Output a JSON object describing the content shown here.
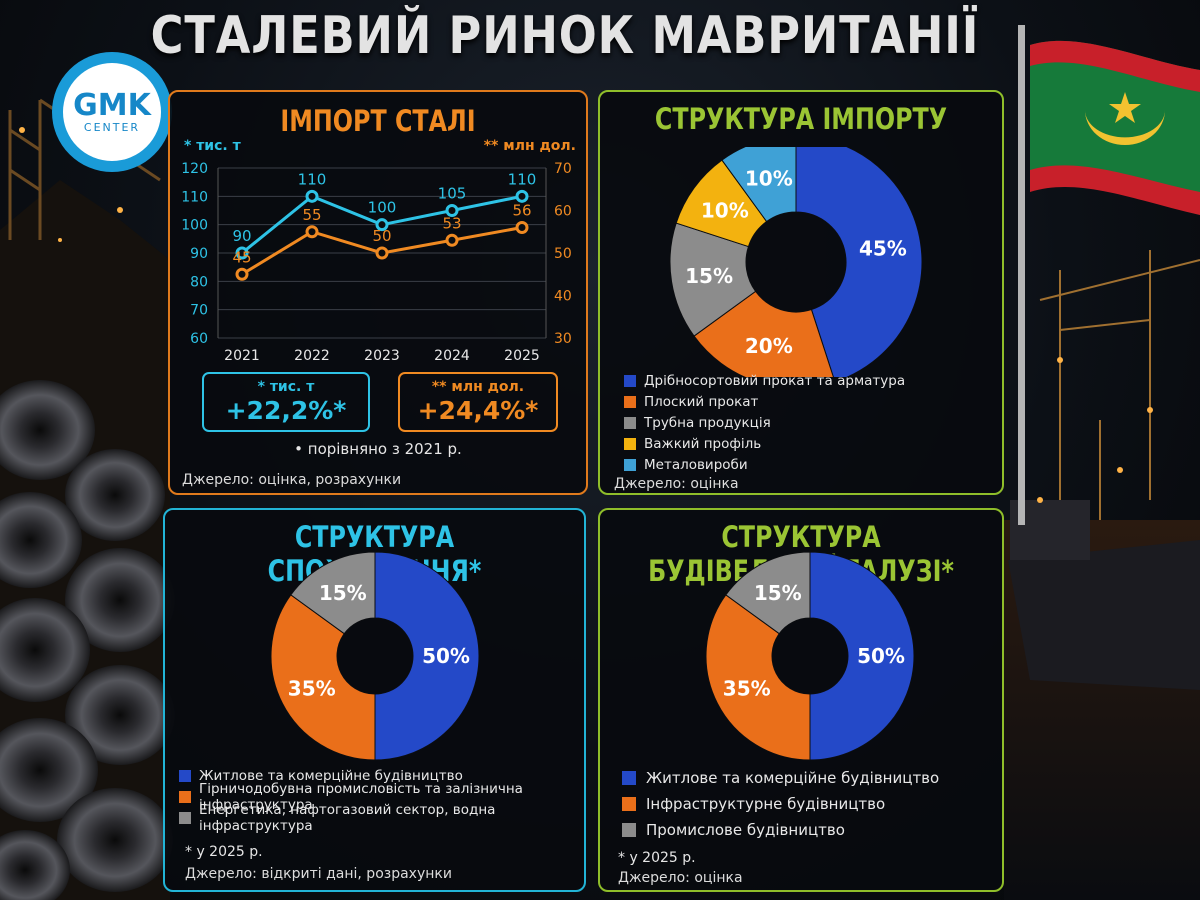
{
  "title": "СТАЛЕВИЙ РИНОК МАВРИТАНІЇ",
  "logo": {
    "top": "GMK",
    "bottom": "CENTER"
  },
  "colors": {
    "blue": "#2449c8",
    "orange": "#ea6f1a",
    "gray": "#8c8c8c",
    "yellow": "#f3b20f",
    "lightblue": "#3fa1d6",
    "cyan": "#2ec3e6",
    "lineOrange": "#f08a22"
  },
  "import": {
    "title": "ІМПОРТ СТАЛІ",
    "left_unit": "* тис. т",
    "right_unit": "** млн дол.",
    "growth_tons": {
      "unit": "* тис. т",
      "value": "+22,2%*"
    },
    "growth_usd": {
      "unit": "** млн дол.",
      "value": "+24,4%*"
    },
    "compare_note": "• порівняно з 2021 р.",
    "source": "Джерело: оцінка, розрахунки"
  },
  "structure_import": {
    "title": "СТРУКТУРА ІМПОРТУ",
    "source": "Джерело: оцінка"
  },
  "structure_consumption": {
    "title": "СТРУКТУРА СПОЖИВАННЯ*",
    "footnote": "* у 2025 р.",
    "source": "Джерело: відкриті дані, розрахунки"
  },
  "structure_construction": {
    "title": "СТРУКТУРА БУДІВЕЛЬНОЇ ГАЛУЗІ*",
    "footnote": "* у 2025 р.",
    "source": "Джерело: оцінка"
  },
  "chart_data": [
    {
      "type": "line",
      "title": "ІМПОРТ СТАЛІ",
      "x": [
        "2021",
        "2022",
        "2023",
        "2024",
        "2025"
      ],
      "series": [
        {
          "name": "* тис. т",
          "values": [
            90,
            110,
            100,
            105,
            110
          ],
          "axis": "left",
          "color": "#2ec3e6"
        },
        {
          "name": "** млн дол.",
          "values": [
            45,
            55,
            50,
            53,
            56
          ],
          "axis": "right",
          "color": "#f08a22"
        }
      ],
      "ylabel": "* тис. т",
      "ylim": [
        60,
        120
      ],
      "yticks": [
        60,
        70,
        80,
        90,
        100,
        110,
        120
      ],
      "y2label": "** млн дол.",
      "y2lim": [
        30,
        70
      ],
      "y2ticks": [
        30,
        40,
        50,
        60,
        70
      ],
      "grid": true
    },
    {
      "type": "pie",
      "title": "СТРУКТУРА ІМПОРТУ",
      "labels": [
        "Дрібносортовий прокат та арматура",
        "Плоский прокат",
        "Трубна продукція",
        "Важкий профіль",
        "Металовироби"
      ],
      "values": [
        45,
        20,
        15,
        10,
        10
      ],
      "value_labels": [
        "45%",
        "20%",
        "15%",
        "10%",
        "10%"
      ],
      "colors": [
        "#2449c8",
        "#ea6f1a",
        "#8c8c8c",
        "#f3b20f",
        "#3fa1d6"
      ]
    },
    {
      "type": "pie",
      "title": "СТРУКТУРА СПОЖИВАННЯ*",
      "labels": [
        "Житлове та комерційне будівництво",
        "Гірничодобувна промисловість та залізнична інфраструктура",
        "Енергетика, нафтогазовий сектор, водна інфраструктура"
      ],
      "values": [
        50,
        35,
        15
      ],
      "value_labels": [
        "50%",
        "35%",
        "15%"
      ],
      "colors": [
        "#2449c8",
        "#ea6f1a",
        "#8c8c8c"
      ]
    },
    {
      "type": "pie",
      "title": "СТРУКТУРА БУДІВЕЛЬНОЇ ГАЛУЗІ*",
      "labels": [
        "Житлове та комерційне будівництво",
        "Інфраструктурне будівництво",
        "Промислове будівництво"
      ],
      "values": [
        50,
        35,
        15
      ],
      "value_labels": [
        "50%",
        "35%",
        "15%"
      ],
      "colors": [
        "#2449c8",
        "#ea6f1a",
        "#8c8c8c"
      ]
    }
  ]
}
